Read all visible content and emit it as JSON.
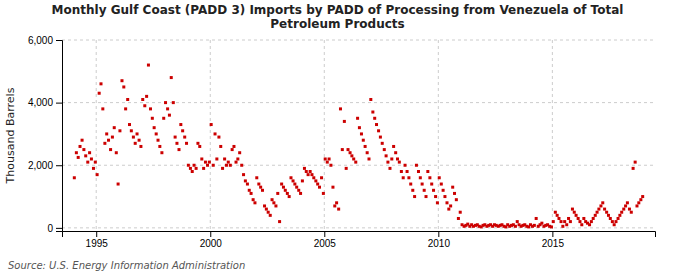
{
  "chart_data": {
    "type": "scatter",
    "title": "Monthly Gulf Coast (PADD 3) Imports by PADD of Processing from Venezuela of Total\nPetroleum Products",
    "ylabel": "Thousand Barrels",
    "annotations": [
      "Source: U.S. Energy Information Administration"
    ],
    "color": "#cc0000",
    "marker": "square",
    "grid": true,
    "xlim": [
      1993.5,
      2019.5
    ],
    "ylim": [
      -100,
      6000
    ],
    "xticks": [
      1995,
      2000,
      2005,
      2010,
      2015
    ],
    "yticks": [
      0,
      {
        "value": 2000,
        "label": "2,000"
      },
      {
        "value": 4000,
        "label": "4,000"
      },
      {
        "value": 6000,
        "label": "6,000"
      }
    ],
    "x": [
      1994.04,
      1994.13,
      1994.21,
      1994.29,
      1994.38,
      1994.46,
      1994.54,
      1994.63,
      1994.71,
      1994.79,
      1994.88,
      1994.96,
      1995.04,
      1995.13,
      1995.21,
      1995.29,
      1995.38,
      1995.46,
      1995.54,
      1995.63,
      1995.71,
      1995.79,
      1995.88,
      1995.96,
      1996.04,
      1996.13,
      1996.21,
      1996.29,
      1996.38,
      1996.46,
      1996.54,
      1996.63,
      1996.71,
      1996.79,
      1996.88,
      1996.96,
      1997.04,
      1997.13,
      1997.21,
      1997.29,
      1997.38,
      1997.46,
      1997.54,
      1997.63,
      1997.71,
      1997.79,
      1997.88,
      1997.96,
      1998.04,
      1998.13,
      1998.21,
      1998.29,
      1998.38,
      1998.46,
      1998.54,
      1998.63,
      1998.71,
      1998.79,
      1998.88,
      1998.96,
      1999.04,
      1999.13,
      1999.21,
      1999.29,
      1999.38,
      1999.46,
      1999.54,
      1999.63,
      1999.71,
      1999.79,
      1999.88,
      1999.96,
      2000.04,
      2000.13,
      2000.21,
      2000.29,
      2000.38,
      2000.46,
      2000.54,
      2000.63,
      2000.71,
      2000.79,
      2000.88,
      2000.96,
      2001.04,
      2001.13,
      2001.21,
      2001.29,
      2001.38,
      2001.46,
      2001.54,
      2001.63,
      2001.71,
      2001.79,
      2001.88,
      2001.96,
      2002.04,
      2002.13,
      2002.21,
      2002.29,
      2002.38,
      2002.46,
      2002.54,
      2002.63,
      2002.71,
      2002.79,
      2002.88,
      2002.96,
      2003.04,
      2003.13,
      2003.21,
      2003.29,
      2003.38,
      2003.46,
      2003.54,
      2003.63,
      2003.71,
      2003.79,
      2003.88,
      2003.96,
      2004.04,
      2004.13,
      2004.21,
      2004.29,
      2004.38,
      2004.46,
      2004.54,
      2004.63,
      2004.71,
      2004.79,
      2004.88,
      2004.96,
      2005.04,
      2005.13,
      2005.21,
      2005.29,
      2005.38,
      2005.46,
      2005.54,
      2005.63,
      2005.71,
      2005.79,
      2005.88,
      2005.96,
      2006.04,
      2006.13,
      2006.21,
      2006.29,
      2006.38,
      2006.46,
      2006.54,
      2006.63,
      2006.71,
      2006.79,
      2006.88,
      2006.96,
      2007.04,
      2007.13,
      2007.21,
      2007.29,
      2007.38,
      2007.46,
      2007.54,
      2007.63,
      2007.71,
      2007.79,
      2007.88,
      2007.96,
      2008.04,
      2008.13,
      2008.21,
      2008.29,
      2008.38,
      2008.46,
      2008.54,
      2008.63,
      2008.71,
      2008.79,
      2008.88,
      2008.96,
      2009.04,
      2009.13,
      2009.21,
      2009.29,
      2009.38,
      2009.46,
      2009.54,
      2009.63,
      2009.71,
      2009.79,
      2009.88,
      2009.96,
      2010.04,
      2010.13,
      2010.21,
      2010.29,
      2010.38,
      2010.46,
      2010.54,
      2010.63,
      2010.71,
      2010.79,
      2010.88,
      2010.96,
      2011.04,
      2011.13,
      2011.21,
      2011.29,
      2011.38,
      2011.46,
      2011.54,
      2011.63,
      2011.71,
      2011.79,
      2011.88,
      2011.96,
      2012.04,
      2012.13,
      2012.21,
      2012.29,
      2012.38,
      2012.46,
      2012.54,
      2012.63,
      2012.71,
      2012.79,
      2012.88,
      2012.96,
      2013.04,
      2013.13,
      2013.21,
      2013.29,
      2013.38,
      2013.46,
      2013.54,
      2013.63,
      2013.71,
      2013.79,
      2013.88,
      2013.96,
      2014.04,
      2014.13,
      2014.21,
      2014.29,
      2014.38,
      2014.46,
      2014.54,
      2014.63,
      2014.71,
      2014.79,
      2014.88,
      2014.96,
      2015.04,
      2015.13,
      2015.21,
      2015.29,
      2015.38,
      2015.46,
      2015.54,
      2015.63,
      2015.71,
      2015.79,
      2015.88,
      2015.96,
      2016.04,
      2016.13,
      2016.21,
      2016.29,
      2016.38,
      2016.46,
      2016.54,
      2016.63,
      2016.71,
      2016.79,
      2016.88,
      2016.96,
      2017.04,
      2017.13,
      2017.21,
      2017.29,
      2017.38,
      2017.46,
      2017.54,
      2017.63,
      2017.71,
      2017.79,
      2017.88,
      2017.96,
      2018.04,
      2018.13,
      2018.21,
      2018.29,
      2018.38,
      2018.46,
      2018.54,
      2018.63,
      2018.71,
      2018.79,
      2018.88,
      2018.96
    ],
    "values": [
      1600,
      2400,
      2250,
      2600,
      2800,
      2500,
      2300,
      2100,
      2400,
      2200,
      1900,
      2100,
      1700,
      4300,
      4600,
      3800,
      2700,
      3000,
      2800,
      2500,
      2900,
      3200,
      2400,
      1400,
      3100,
      4700,
      4500,
      3800,
      4100,
      3300,
      3100,
      2900,
      2700,
      3000,
      2800,
      2600,
      4100,
      3900,
      4200,
      5200,
      3800,
      3500,
      3200,
      3000,
      2800,
      2600,
      2400,
      3500,
      4000,
      3800,
      3600,
      4800,
      4000,
      2900,
      2700,
      2500,
      3300,
      3100,
      2900,
      2700,
      2000,
      1900,
      1800,
      2000,
      1900,
      2700,
      2600,
      2200,
      1900,
      2100,
      2000,
      2100,
      3300,
      2000,
      3000,
      2200,
      2900,
      2600,
      1900,
      2200,
      2000,
      2100,
      2000,
      2500,
      2600,
      2100,
      2200,
      2400,
      2000,
      1700,
      1500,
      1400,
      1200,
      1100,
      900,
      800,
      1600,
      1400,
      1300,
      1200,
      700,
      600,
      500,
      400,
      900,
      800,
      700,
      1100,
      200,
      1400,
      1300,
      1200,
      1100,
      1000,
      1600,
      1500,
      1400,
      1300,
      1200,
      1100,
      1500,
      1900,
      1800,
      1700,
      1800,
      1700,
      1600,
      1500,
      1400,
      1300,
      1600,
      1100,
      2200,
      2100,
      2200,
      2000,
      1300,
      700,
      800,
      600,
      3800,
      2500,
      3400,
      1900,
      2500,
      2400,
      2300,
      2200,
      2100,
      3500,
      3200,
      3000,
      2800,
      2600,
      2400,
      2200,
      4100,
      3700,
      3500,
      3300,
      3100,
      2900,
      2700,
      2500,
      2300,
      2100,
      1900,
      2200,
      2600,
      2400,
      2200,
      2100,
      1800,
      1600,
      2000,
      1800,
      1600,
      1400,
      1200,
      1000,
      2000,
      1800,
      1600,
      1400,
      1200,
      1000,
      1800,
      1600,
      1400,
      1200,
      1000,
      800,
      1600,
      1400,
      1200,
      1000,
      800,
      600,
      700,
      1300,
      1100,
      900,
      300,
      500,
      100,
      50,
      80,
      120,
      50,
      100,
      50,
      80,
      100,
      50,
      30,
      80,
      100,
      50,
      80,
      100,
      50,
      100,
      80,
      50,
      80,
      100,
      50,
      30,
      100,
      50,
      80,
      100,
      50,
      200,
      100,
      50,
      80,
      100,
      50,
      30,
      100,
      50,
      80,
      300,
      50,
      100,
      150,
      50,
      80,
      100,
      50,
      30,
      200,
      500,
      400,
      300,
      200,
      50,
      200,
      100,
      300,
      200,
      600,
      500,
      400,
      300,
      200,
      100,
      300,
      200,
      150,
      100,
      200,
      300,
      400,
      500,
      600,
      700,
      800,
      600,
      500,
      400,
      300,
      200,
      100,
      200,
      300,
      400,
      500,
      600,
      700,
      800,
      600,
      500,
      1900,
      2100,
      700,
      800,
      900,
      1000
    ]
  }
}
